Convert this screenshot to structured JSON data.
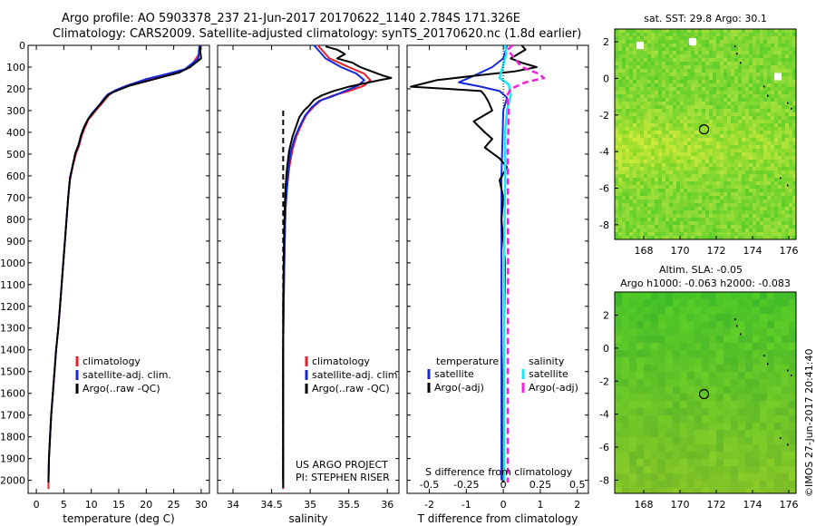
{
  "header": {
    "line1": "Argo profile: AO 5903378_237 21-Jun-2017 20170622_1140 2.784S 171.326E",
    "line2": "Climatology: CARS2009. Satellite-adjusted climatology: synTS_20170620.nc (1.8d earlier)"
  },
  "side_label": "©IMOS 27-Jun-2017 20:41:40",
  "colors": {
    "red": "#e8202a",
    "blue": "#1428dc",
    "black": "#000000",
    "cyan": "#18e8f0",
    "magenta": "#ee22dd"
  },
  "chart_data": [
    {
      "id": "temperature",
      "type": "line",
      "xlabel": "temperature (deg C)",
      "ylabel": "",
      "xlim": [
        -1.5,
        31.5
      ],
      "ylim": [
        2060,
        0
      ],
      "xticks": [
        0,
        5,
        10,
        15,
        20,
        25,
        30
      ],
      "yticks": [
        0,
        100,
        200,
        300,
        400,
        500,
        600,
        700,
        800,
        900,
        1000,
        1100,
        1200,
        1300,
        1400,
        1500,
        1600,
        1700,
        1800,
        1900,
        2000
      ],
      "legend": [
        "climatology",
        "satellite-adj. clim.",
        "Argo(..raw -QC)"
      ],
      "series": [
        {
          "name": "climatology",
          "color": "red",
          "x": [
            29.9,
            29.8,
            29.6,
            28,
            26,
            23,
            20,
            17,
            15,
            13.5,
            12.8,
            12.2,
            11.5,
            10.8,
            10.2,
            9.5,
            8.8,
            8.2,
            7.8,
            7.2,
            6.6,
            6.1,
            5.8,
            5.5,
            5.2,
            4.9,
            4.6,
            4.3,
            4.0,
            3.6,
            3.3,
            3.0,
            2.7,
            2.5,
            2.3,
            2.2
          ],
          "y": [
            0,
            20,
            40,
            100,
            120,
            140,
            160,
            180,
            200,
            220,
            240,
            260,
            280,
            300,
            320,
            340,
            380,
            420,
            460,
            500,
            560,
            620,
            700,
            800,
            900,
            1000,
            1100,
            1200,
            1300,
            1400,
            1500,
            1600,
            1700,
            1800,
            1900,
            2040
          ]
        },
        {
          "name": "satellite-adj. clim.",
          "color": "blue",
          "x": [
            29.7,
            29.6,
            29.5,
            27,
            24,
            20,
            16.5,
            14.5,
            13,
            12.3,
            11.6,
            10.9,
            10.2,
            9.5,
            8.8,
            8.2,
            7.8,
            7.2,
            6.6,
            6.1,
            5.8,
            5.5,
            5.2,
            4.9,
            4.6,
            4.3,
            4.0,
            3.6,
            3.3,
            3.0,
            2.7,
            2.5,
            2.3,
            2.2
          ],
          "y": [
            0,
            20,
            60,
            110,
            130,
            155,
            185,
            205,
            225,
            245,
            270,
            290,
            310,
            335,
            370,
            410,
            450,
            490,
            550,
            610,
            700,
            800,
            900,
            1000,
            1100,
            1200,
            1300,
            1400,
            1500,
            1600,
            1700,
            1800,
            1900,
            2000
          ]
        },
        {
          "name": "Argo(..raw -QC)",
          "color": "black",
          "x": [
            29.9,
            29.8,
            29.9,
            30,
            28,
            26,
            23,
            20,
            17,
            15.5,
            14,
            13,
            12.5,
            12,
            11.3,
            10.7,
            10,
            9.4,
            8.7,
            8.1,
            7.7,
            7.1,
            6.6,
            6.1,
            5.8,
            5.5,
            5.2,
            4.9,
            4.6,
            4.3,
            4.0,
            3.6,
            3.3,
            3.0,
            2.7,
            2.5,
            2.3,
            2.2
          ],
          "y": [
            5,
            20,
            40,
            60,
            100,
            125,
            145,
            165,
            185,
            200,
            215,
            230,
            245,
            260,
            280,
            300,
            320,
            340,
            375,
            415,
            455,
            495,
            555,
            615,
            700,
            800,
            900,
            1000,
            1100,
            1200,
            1300,
            1400,
            1500,
            1600,
            1700,
            1800,
            1900,
            2010
          ]
        }
      ]
    },
    {
      "id": "salinity",
      "type": "line",
      "xlabel": "salinity",
      "ylabel": "",
      "xlim": [
        33.8,
        36.15
      ],
      "ylim": [
        2060,
        0
      ],
      "xticks": [
        34,
        34.5,
        35,
        35.5,
        36
      ],
      "legend": [
        "climatology",
        "satellite-adj. clim.",
        "Argo(..raw -QC)"
      ],
      "annotations": [
        "US ARGO PROJECT",
        "PI: STEPHEN RISER"
      ],
      "series": [
        {
          "name": "climatology",
          "color": "red",
          "x": [
            35.1,
            35.25,
            35.5,
            35.7,
            35.78,
            35.7,
            35.5,
            35.3,
            35.15,
            35.05,
            34.95,
            34.88,
            34.82,
            34.77,
            34.73,
            34.7,
            34.68,
            34.67,
            34.66,
            34.65,
            34.65,
            34.65
          ],
          "y": [
            0,
            60,
            100,
            130,
            160,
            185,
            210,
            230,
            250,
            280,
            320,
            370,
            420,
            480,
            560,
            650,
            750,
            900,
            1100,
            1400,
            1800,
            2040
          ]
        },
        {
          "name": "satellite-adj. clim.",
          "color": "blue",
          "x": [
            35.05,
            35.2,
            35.4,
            35.6,
            35.7,
            35.62,
            35.45,
            35.28,
            35.12,
            35.02,
            34.93,
            34.86,
            34.8,
            34.75,
            34.72,
            34.7,
            34.68,
            34.67,
            34.66,
            34.65,
            34.65,
            34.65
          ],
          "y": [
            0,
            60,
            100,
            130,
            160,
            185,
            210,
            235,
            255,
            285,
            325,
            375,
            425,
            485,
            565,
            655,
            755,
            905,
            1105,
            1405,
            1805,
            2000
          ]
        },
        {
          "name": "Argo(..raw -QC)",
          "color": "black",
          "x": [
            35.2,
            35.35,
            35.45,
            35.35,
            35.55,
            35.65,
            35.8,
            35.95,
            36.05,
            35.9,
            35.7,
            35.5,
            35.3,
            35.15,
            35.05,
            34.98,
            34.92,
            34.86,
            34.82,
            34.77,
            34.73,
            34.7,
            34.68,
            34.67,
            34.66,
            34.65,
            34.65,
            34.65
          ],
          "y": [
            5,
            20,
            40,
            60,
            80,
            100,
            120,
            140,
            150,
            160,
            175,
            190,
            210,
            230,
            250,
            280,
            300,
            330,
            370,
            420,
            480,
            560,
            650,
            750,
            900,
            1200,
            1600,
            2010
          ]
        }
      ]
    },
    {
      "id": "differences",
      "type": "line",
      "xlabel": "T difference from climatology",
      "ylabel": "",
      "xlim": [
        -2.6,
        2.3
      ],
      "ylim": [
        2060,
        0
      ],
      "xticks": [
        -2,
        -1,
        0,
        1,
        2
      ],
      "secondary_xlabel": "S difference from climatology",
      "secondary_xticks": [
        -0.5,
        -0.25,
        0,
        0.25,
        0.5
      ],
      "legend": [
        "temperature",
        "satellite",
        "Argo(-adj)",
        "salinity",
        "satellite",
        "Argo(-adj)"
      ],
      "series": [
        {
          "name": "temperature satellite",
          "color": "blue",
          "x": [
            0.1,
            0,
            -0.3,
            -0.8,
            -1.2,
            -0.6,
            -0.1,
            0.1,
            0,
            -0.05,
            -0.05,
            -0.05,
            -0.05,
            -0.05
          ],
          "y": [
            0,
            60,
            100,
            140,
            170,
            190,
            210,
            240,
            300,
            600,
            1000,
            1400,
            1800,
            2000
          ]
        },
        {
          "name": "temperature Argo(-adj)",
          "color": "black",
          "x": [
            0.5,
            0.6,
            0.4,
            0.2,
            0.5,
            0.9,
            0.3,
            -0.8,
            -1.8,
            -2.5,
            -1.5,
            -0.6,
            -0.5,
            -0.4,
            -0.3,
            -0.8,
            -0.5,
            -0.3,
            -0.5,
            -0.1,
            0.1,
            -0.1,
            0,
            -0.05,
            0.05,
            0,
            0
          ],
          "y": [
            0,
            20,
            40,
            60,
            80,
            100,
            120,
            140,
            160,
            190,
            200,
            210,
            230,
            260,
            300,
            350,
            400,
            430,
            470,
            520,
            560,
            620,
            700,
            800,
            1000,
            1500,
            2010
          ]
        },
        {
          "name": "salinity satellite",
          "color": "cyan",
          "x": [
            0.05,
            0.08,
            -0.1,
            0.15,
            0.2,
            0.1,
            0.05,
            0.05,
            0.02,
            0.02,
            0.02
          ],
          "y": [
            0,
            40,
            150,
            180,
            230,
            300,
            400,
            600,
            1000,
            1500,
            2000
          ]
        },
        {
          "name": "salinity Argo(-adj)",
          "color": "magenta",
          "x": [
            0.25,
            0.12,
            0.3,
            0.5,
            0.95,
            1.1,
            0.6,
            0.2,
            0.1,
            0.15,
            0.12,
            0.13,
            0.12,
            0.12
          ],
          "y": [
            0,
            20,
            60,
            100,
            130,
            150,
            170,
            200,
            230,
            300,
            500,
            1000,
            1500,
            2010
          ]
        }
      ]
    },
    {
      "id": "sst-map",
      "type": "heatmap",
      "title": "sat. SST: 29.8  Argo: 30.1",
      "xlim": [
        166.4,
        176.4
      ],
      "ylim": [
        -8.8,
        2.7
      ],
      "xticks": [
        168,
        170,
        172,
        174,
        176
      ],
      "yticks": [
        2,
        0,
        -2,
        -4,
        -6,
        -8
      ],
      "marker": {
        "lon": 171.326,
        "lat": -2.784
      }
    },
    {
      "id": "sla-map",
      "type": "heatmap",
      "title": "Altim. SLA: -0.05",
      "subtitle": "Argo h1000: -0.063 h2000: -0.083",
      "xlim": [
        166.4,
        176.4
      ],
      "ylim": [
        -8.8,
        3.4
      ],
      "xticks": [
        168,
        170,
        172,
        174,
        176
      ],
      "yticks": [
        2,
        0,
        -2,
        -4,
        -6,
        -8
      ],
      "marker": {
        "lon": 171.326,
        "lat": -2.784
      }
    }
  ]
}
